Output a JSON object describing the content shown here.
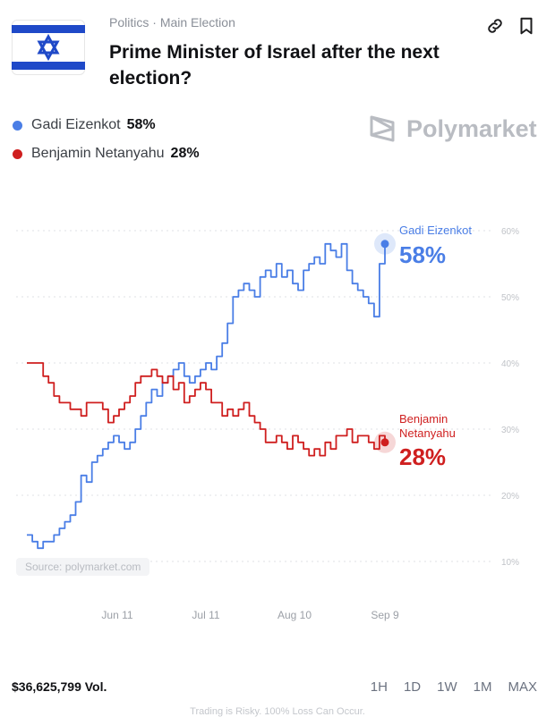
{
  "header": {
    "breadcrumb": [
      "Politics",
      "·",
      "Main Election"
    ],
    "title": "Prime Minister of Israel after the next election?",
    "flag_colors": {
      "blue": "#1f49c8",
      "white": "#ffffff"
    }
  },
  "legend": [
    {
      "name": "Gadi Eizenkot",
      "value": "58%",
      "color": "#4a7ee6"
    },
    {
      "name": "Benjamin Netanyahu",
      "value": "28%",
      "color": "#cf1f1f"
    }
  ],
  "brand": {
    "name": "Polymarket",
    "icon": "polymarket-logo-icon"
  },
  "icons": [
    "link-icon",
    "bookmark-icon"
  ],
  "chart_data": {
    "type": "line",
    "title": "",
    "x_ticks": [
      "Jun 11",
      "Jul 11",
      "Aug 10",
      "Sep 9"
    ],
    "y_ticks": [
      "60%",
      "50%",
      "40%",
      "30%",
      "20%",
      "10%"
    ],
    "ylim": [
      10,
      60
    ],
    "grid": true,
    "series": [
      {
        "name": "Gadi Eizenkot",
        "end_label": "58%",
        "color": "#4a7ee6",
        "values": [
          14,
          13,
          12,
          13,
          13,
          14,
          15,
          16,
          17,
          19,
          23,
          22,
          25,
          26,
          27,
          28,
          29,
          28,
          27,
          28,
          30,
          32,
          34,
          36,
          35,
          37,
          38,
          39,
          40,
          38,
          37,
          38,
          39,
          40,
          39,
          41,
          43,
          46,
          50,
          51,
          52,
          51,
          50,
          53,
          54,
          53,
          55,
          53,
          54,
          52,
          51,
          54,
          55,
          56,
          55,
          58,
          57,
          56,
          58,
          54,
          52,
          51,
          50,
          49,
          47,
          55,
          58
        ]
      },
      {
        "name": "Benjamin Netanyahu",
        "end_label": "28%",
        "color": "#cf1f1f",
        "values": [
          40,
          40,
          40,
          38,
          37,
          35,
          34,
          34,
          33,
          33,
          32,
          34,
          34,
          34,
          33,
          31,
          32,
          33,
          34,
          35,
          37,
          38,
          38,
          39,
          38,
          37,
          38,
          36,
          37,
          34,
          35,
          36,
          37,
          36,
          34,
          34,
          32,
          33,
          32,
          33,
          34,
          32,
          31,
          30,
          28,
          28,
          29,
          28,
          27,
          29,
          28,
          27,
          26,
          27,
          26,
          28,
          27,
          29,
          29,
          30,
          28,
          29,
          29,
          28,
          27,
          29,
          28
        ]
      }
    ]
  },
  "source_note": "Source: polymarket.com",
  "volume": "$36,625,799 Vol.",
  "ranges": [
    "1H",
    "1D",
    "1W",
    "1M",
    "MAX"
  ],
  "disclaimer": "Trading is Risky. 100% Loss Can Occur."
}
